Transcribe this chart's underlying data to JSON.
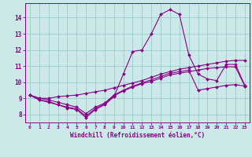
{
  "xlabel": "Windchill (Refroidissement éolien,°C)",
  "bg_color": "#cce8e8",
  "line_color": "#880088",
  "grid_color": "#99cccc",
  "hours": [
    0,
    1,
    2,
    3,
    4,
    5,
    6,
    7,
    8,
    9,
    10,
    11,
    12,
    13,
    14,
    15,
    16,
    17,
    18,
    19,
    20,
    21,
    22,
    23
  ],
  "line1": [
    9.2,
    8.9,
    8.8,
    8.6,
    8.4,
    8.3,
    7.8,
    8.3,
    8.6,
    9.1,
    10.5,
    11.9,
    12.0,
    13.0,
    14.2,
    14.5,
    14.2,
    11.7,
    10.5,
    10.2,
    10.1,
    11.1,
    11.1,
    9.8
  ],
  "line2": [
    9.2,
    9.0,
    9.0,
    9.1,
    9.15,
    9.2,
    9.3,
    9.4,
    9.5,
    9.65,
    9.8,
    9.95,
    10.1,
    10.3,
    10.5,
    10.65,
    10.8,
    10.9,
    11.0,
    11.1,
    11.2,
    11.3,
    11.35,
    11.35
  ],
  "line3": [
    9.2,
    8.9,
    8.75,
    8.6,
    8.45,
    8.35,
    7.9,
    8.35,
    8.65,
    9.15,
    9.45,
    9.7,
    9.9,
    10.05,
    10.25,
    10.45,
    10.55,
    10.65,
    10.75,
    10.85,
    10.9,
    10.95,
    10.95,
    9.75
  ],
  "line4": [
    9.2,
    9.0,
    8.9,
    8.75,
    8.6,
    8.45,
    8.05,
    8.45,
    8.7,
    9.2,
    9.5,
    9.75,
    9.95,
    10.15,
    10.35,
    10.55,
    10.65,
    10.75,
    9.5,
    9.6,
    9.7,
    9.8,
    9.85,
    9.75
  ],
  "ylim": [
    7.5,
    14.9
  ],
  "yticks": [
    8,
    9,
    10,
    11,
    12,
    13,
    14
  ],
  "xlim": [
    -0.5,
    23.5
  ]
}
